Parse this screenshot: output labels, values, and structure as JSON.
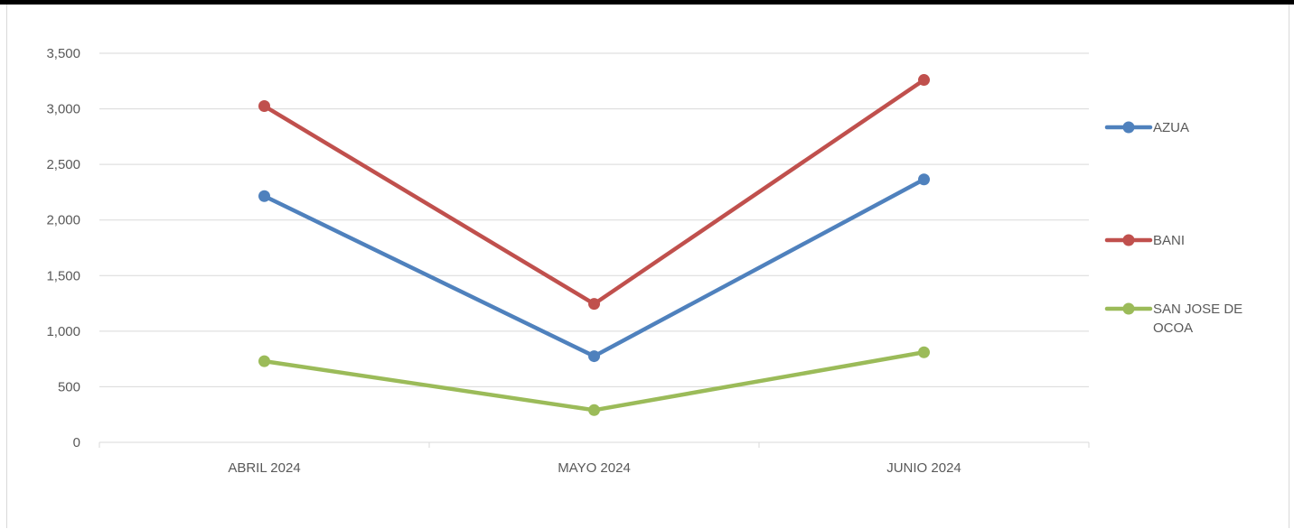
{
  "chart_data": {
    "type": "line",
    "title": "",
    "xlabel": "",
    "ylabel": "",
    "categories": [
      "ABRIL 2024",
      "MAYO 2024",
      "JUNIO 2024"
    ],
    "y_ticks": [
      "0",
      "500",
      "1,000",
      "1,500",
      "2,000",
      "2,500",
      "3,000",
      "3,500"
    ],
    "y_tick_values": [
      0,
      500,
      1000,
      1500,
      2000,
      2500,
      3000,
      3500
    ],
    "ylim": [
      0,
      3500
    ],
    "grid": true,
    "legend_position": "right",
    "series": [
      {
        "name": "AZUA",
        "legend_lines": [
          "AZUA"
        ],
        "color": "#4f81bd",
        "values": [
          2215,
          775,
          2365
        ]
      },
      {
        "name": "BANI",
        "legend_lines": [
          "BANI"
        ],
        "color": "#c0504d",
        "values": [
          3025,
          1245,
          3260
        ]
      },
      {
        "name": "SAN JOSE DE OCOA",
        "legend_lines": [
          "SAN JOSE DE",
          "OCOA"
        ],
        "color": "#9bbb59",
        "values": [
          730,
          290,
          810
        ]
      }
    ]
  }
}
